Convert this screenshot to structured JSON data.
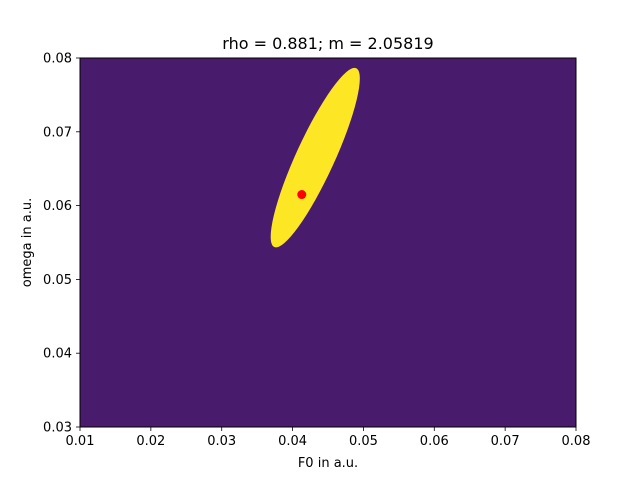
{
  "chart_data": {
    "type": "contour",
    "title": "rho = 0.881;  m = 2.05819",
    "xlabel": "F0 in a.u.",
    "ylabel": "omega in a.u.",
    "xlim": [
      0.01,
      0.08
    ],
    "ylim": [
      0.03,
      0.08
    ],
    "xticks": [
      "0.01",
      "0.02",
      "0.03",
      "0.04",
      "0.05",
      "0.06",
      "0.07",
      "0.08"
    ],
    "yticks": [
      "0.03",
      "0.04",
      "0.05",
      "0.06",
      "0.07",
      "0.08"
    ],
    "grid": false,
    "colormap": "viridis",
    "colors": {
      "background": "#481b6d",
      "levels": [
        "#3f4889",
        "#31688e",
        "#26828e",
        "#1f9e89",
        "#35b779",
        "#6ece58",
        "#b5de2b",
        "#fde725"
      ],
      "marker": "#ff0000"
    },
    "peak": {
      "x": 0.0432,
      "y": 0.0665
    },
    "sigma": {
      "x": 0.003,
      "y": 0.0058
    },
    "marker": {
      "x": 0.0413,
      "y": 0.0615
    }
  }
}
